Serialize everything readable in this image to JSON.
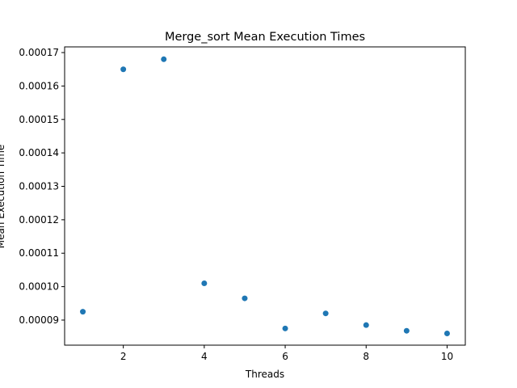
{
  "chart_data": {
    "type": "scatter",
    "title": "Merge_sort Mean Execution Times",
    "xlabel": "Threads",
    "ylabel": "Mean Execution Time",
    "x": [
      1,
      2,
      3,
      4,
      5,
      6,
      7,
      8,
      9,
      10
    ],
    "y": [
      9.25e-05,
      0.000165,
      0.000168,
      0.000101,
      9.65e-05,
      8.75e-05,
      9.2e-05,
      8.85e-05,
      8.68e-05,
      8.6e-05
    ],
    "xlim": [
      0.55,
      10.45
    ],
    "ylim": [
      8.25e-05,
      0.0001717
    ],
    "xticks": [
      2,
      4,
      6,
      8,
      10
    ],
    "xtick_labels": [
      "2",
      "4",
      "6",
      "8",
      "10"
    ],
    "yticks": [
      9e-05,
      0.0001,
      0.00011,
      0.00012,
      0.00013,
      0.00014,
      0.00015,
      0.00016,
      0.00017
    ],
    "ytick_labels": [
      "0.00009",
      "0.00010",
      "0.00011",
      "0.00012",
      "0.00013",
      "0.00014",
      "0.00015",
      "0.00016",
      "0.00017"
    ],
    "marker_color": "#1f77b4",
    "grid": false,
    "legend": "none"
  }
}
